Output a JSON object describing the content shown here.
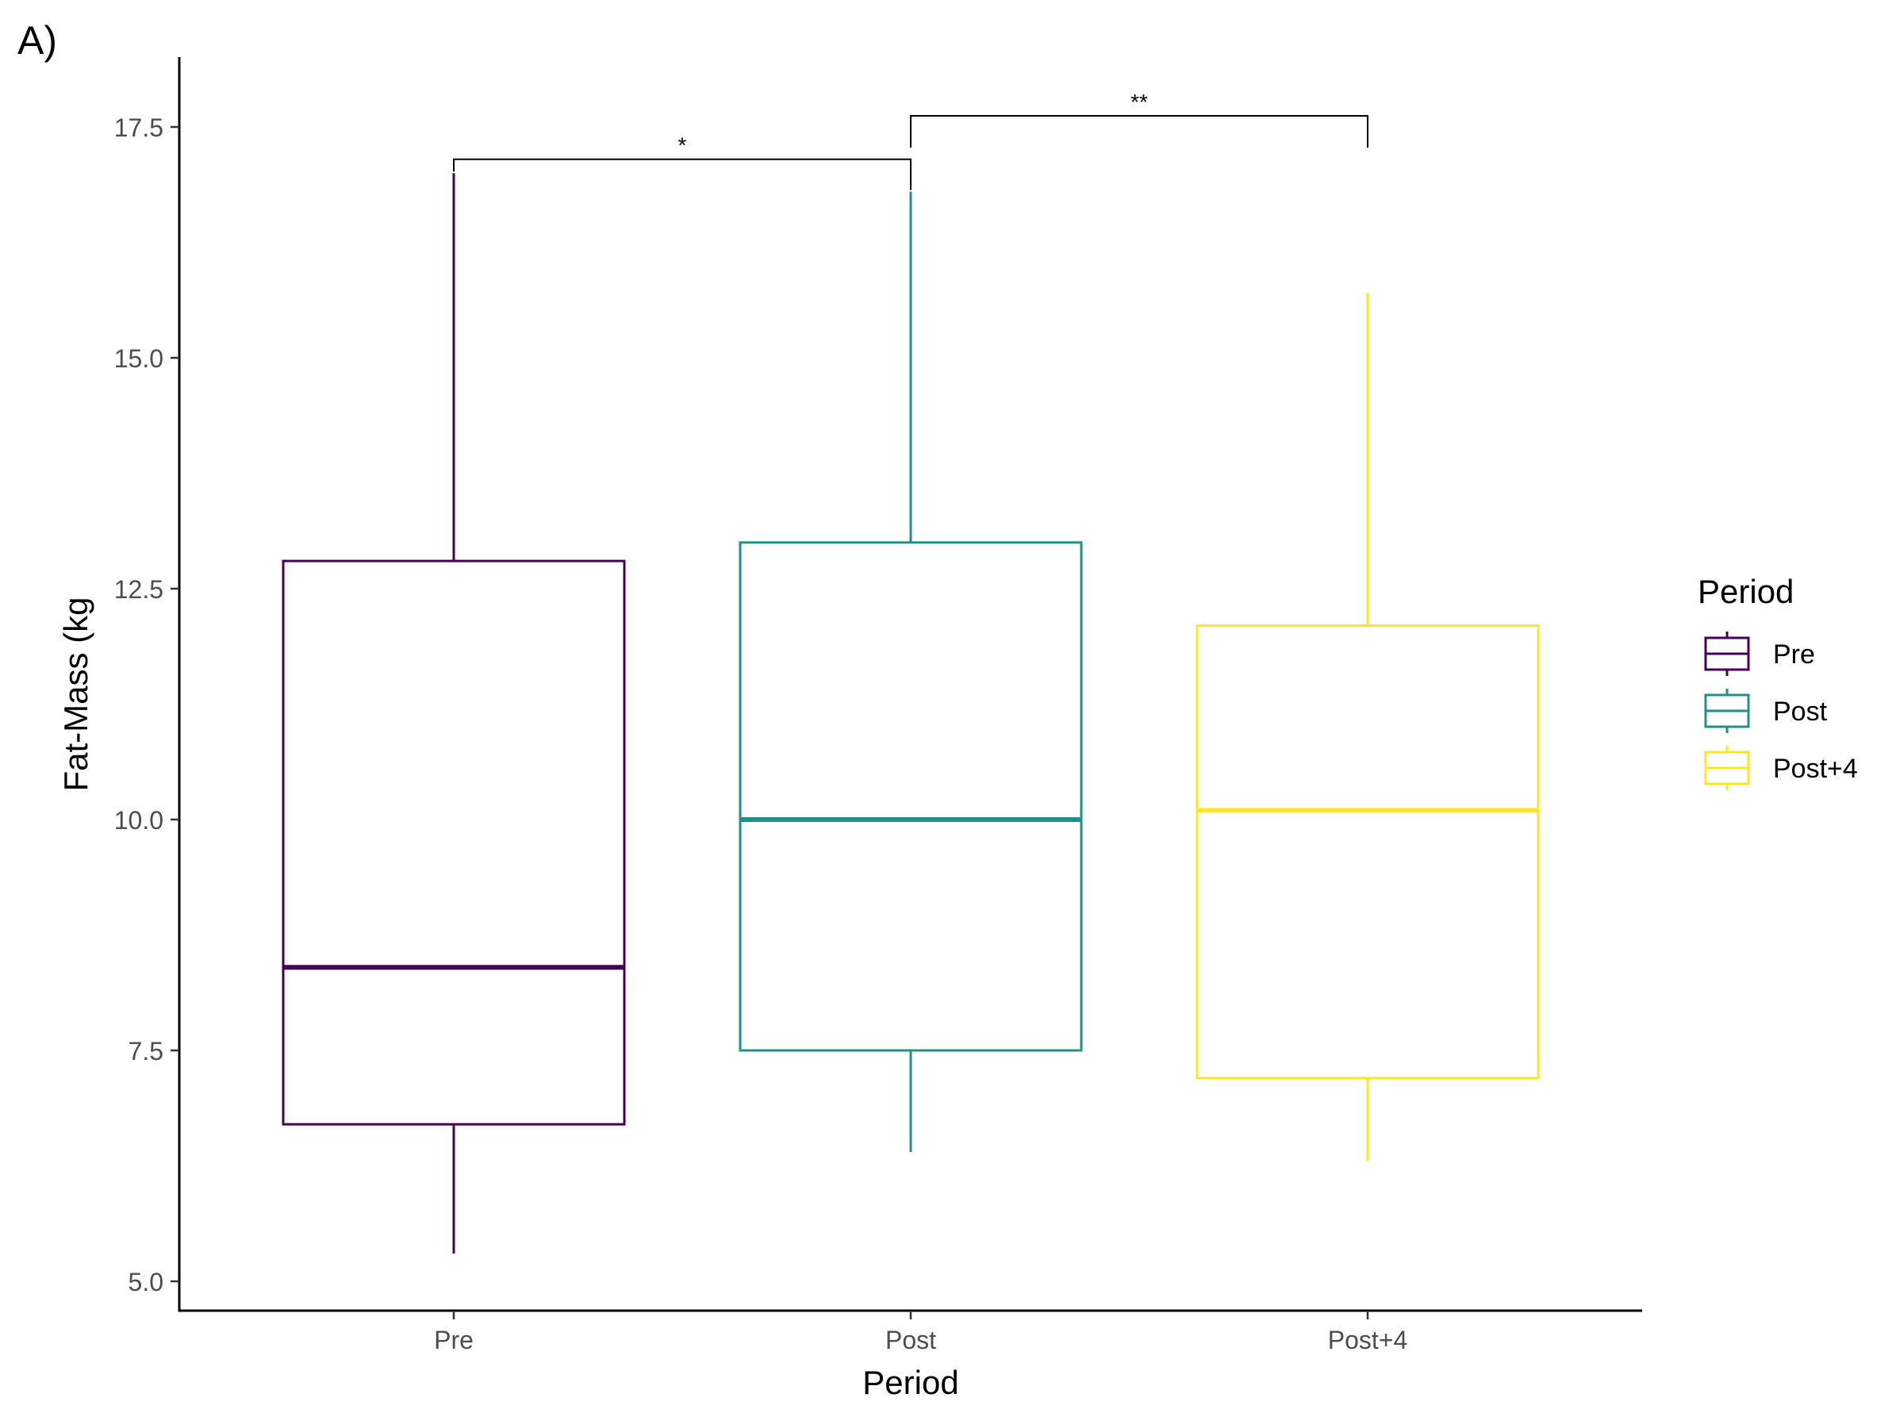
{
  "panel_label": "A)",
  "chart_data": {
    "type": "boxplot",
    "title": "",
    "xlabel": "Period",
    "ylabel": "Fat-Mass (kg",
    "ylim": [
      4.4,
      18.25
    ],
    "yticks": [
      5.0,
      7.5,
      10.0,
      12.5,
      15.0,
      17.5
    ],
    "ytick_labels": [
      "5.0",
      "7.5",
      "10.0",
      "12.5",
      "15.0",
      "17.5"
    ],
    "grid": false,
    "categories": [
      "Pre",
      "Post",
      "Post+4"
    ],
    "colors": [
      "#440154",
      "#21908C",
      "#FDE725"
    ],
    "boxes": [
      {
        "category": "Pre",
        "whisker_low": 5.3,
        "q1": 6.7,
        "median": 8.4,
        "q3": 12.8,
        "whisker_high": 17.0
      },
      {
        "category": "Post",
        "whisker_low": 6.4,
        "q1": 7.5,
        "median": 10.0,
        "q3": 13.0,
        "whisker_high": 16.8
      },
      {
        "category": "Post+4",
        "whisker_low": 6.3,
        "q1": 7.2,
        "median": 10.1,
        "q3": 12.1,
        "whisker_high": 15.7
      }
    ],
    "significance": [
      {
        "from": "Pre",
        "to": "Post",
        "label": "*",
        "y": 17.15
      },
      {
        "from": "Post",
        "to": "Post+4",
        "label": "**",
        "y": 17.62
      }
    ],
    "legend": {
      "title": "Period",
      "placement": "right",
      "entries": [
        "Pre",
        "Post",
        "Post+4"
      ]
    }
  }
}
